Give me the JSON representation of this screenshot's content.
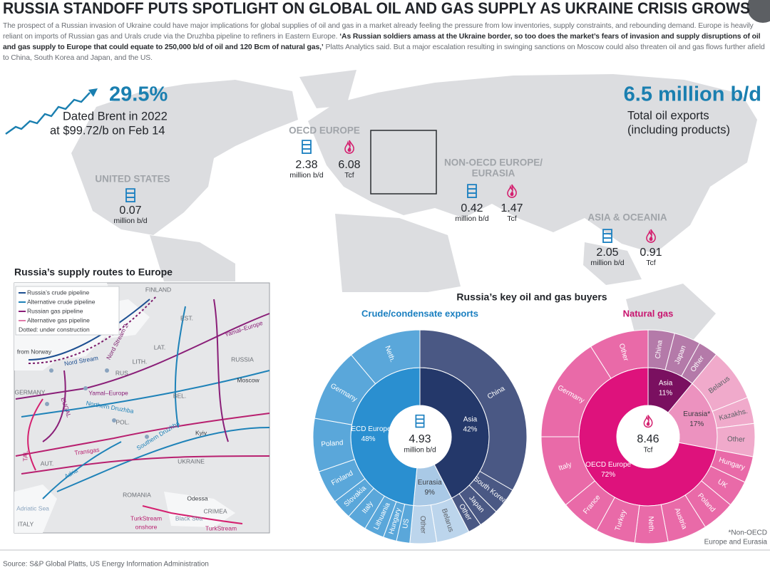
{
  "header": {
    "title": "RUSSIA STANDOFF PUTS SPOTLIGHT ON GLOBAL OIL AND GAS SUPPLY AS UKRAINE CRISIS GROWS",
    "intro": [
      "The prospect of a Russian invasion of Ukraine could have major implications for global supplies of oil and gas in a market already feeling the pressure from low inventories, supply constraints, and rebounding demand.  Europe is heavily reliant on imports of Russian gas and Urals crude via the Druzhba pipeline to refiners in Eastern Europe.  ",
      "‘As Russian soldiers amass at the Ukraine border, so too does the market’s fears of invasion and supply disruptions of oil and gas supply to Europe that could equate to 250,000 b/d of oil and 120 Bcm of natural gas,’",
      " Platts Analytics said. But a major escalation resulting in swinging sanctions on Moscow could also threaten oil and gas flows further afield to China, South Korea and Japan, and the US."
    ]
  },
  "stats": {
    "brent": {
      "value": "29.5%",
      "label": "Dated Brent in 2022",
      "sub": "at $99.72/b on Feb 14"
    },
    "exports": {
      "value": "6.5 million b/d",
      "label": "Total oil exports",
      "sub": "(including products)"
    }
  },
  "regions": [
    {
      "name": [
        "OECD EUROPE"
      ],
      "oil": "2.38",
      "oil_unit": "million b/d",
      "gas": "6.08",
      "gas_unit": "Tcf"
    },
    {
      "name": [
        "UNITED STATES"
      ],
      "oil": "0.07",
      "oil_unit": "million b/d"
    },
    {
      "name": [
        "NON-OECD EUROPE/",
        "EURASIA"
      ],
      "oil": "0.42",
      "oil_unit": "million b/d",
      "gas": "1.47",
      "gas_unit": "Tcf"
    },
    {
      "name": [
        "ASIA & OCEANIA"
      ],
      "oil": "2.05",
      "oil_unit": "million b/d",
      "gas": "0.91",
      "gas_unit": "Tcf"
    }
  ],
  "map_inset": {
    "title": "Russia’s supply routes to Europe",
    "legend": [
      "Russia’s crude pipeline",
      "Alternative crude pipeline",
      "Russian gas pipeline",
      "Alternative gas pipeline",
      "Dotted: under construction"
    ],
    "labels": [
      "FINLAND",
      "EST.",
      "LAT.",
      "LITH.",
      "RUS.",
      "BEL.",
      "POL.",
      "GERMANY",
      "UKRAINE",
      "ROMANIA",
      "RUSSIA",
      "Moscow",
      "Kyiv",
      "Odessa",
      "CRIMEA",
      "AUT.",
      "ITALY",
      "Nord Stream",
      "Nord Stream 2",
      "Yamal–Europe",
      "Yamal–Europe",
      "Northern Druzhba",
      "Southern Druzhba",
      "Transgas",
      "Adria",
      "TurkStream",
      "onshore",
      "TurkStream",
      "Black Sea",
      "Adriatic Sea",
      "from Norway",
      "EUGAL",
      "TAL"
    ]
  },
  "buyers_title": "Russia’s key oil and gas buyers",
  "chart_data": [
    {
      "type": "sunburst",
      "title": "Crude/condensate exports",
      "title_color": "#1a7fc0",
      "center_value": "4.93",
      "center_unit": "million b/d",
      "categories": [
        "Asia",
        "Eurasia",
        "OECD Europe"
      ],
      "values": [
        42,
        9,
        48
      ],
      "value_labels": [
        "42%",
        "9%",
        "48%"
      ],
      "colors": [
        "#24386a",
        "#a9c9e6",
        "#2a8fd0"
      ],
      "outer_colors": [
        "#4a5884",
        "#bcd5ec",
        "#5aa7da"
      ],
      "segments": [
        {
          "categories": [
            "China",
            "South Korea",
            "Japan",
            "Other"
          ],
          "values": [
            33,
            4,
            3,
            2
          ]
        },
        {
          "categories": [
            "Belarus",
            "Other"
          ],
          "values": [
            5,
            4
          ]
        },
        {
          "categories": [
            "US",
            "Hungary",
            "Lithuania",
            "Italy",
            "Slovakia",
            "Finland",
            "Poland",
            "Germany",
            "Neth."
          ],
          "values": [
            2,
            2,
            3,
            3,
            3,
            5,
            8,
            11,
            11
          ]
        }
      ]
    },
    {
      "type": "sunburst",
      "title": "Natural gas",
      "title_color": "#c8156f",
      "center_value": "8.46",
      "center_unit": "Tcf",
      "categories": [
        "Asia",
        "Eurasia*",
        "OECD Europe"
      ],
      "values": [
        11,
        17,
        72
      ],
      "value_labels": [
        "11%",
        "17%",
        "72%"
      ],
      "colors": [
        "#7a1060",
        "#ec92bf",
        "#de127c"
      ],
      "outer_colors": [
        "#b47aa9",
        "#f0aacb",
        "#e96aa8"
      ],
      "segments": [
        {
          "categories": [
            "China",
            "Japan",
            "Other"
          ],
          "values": [
            4,
            4,
            3
          ]
        },
        {
          "categories": [
            "Belarus",
            "Kazakhs.",
            "Other"
          ],
          "values": [
            8,
            4,
            5
          ]
        },
        {
          "categories": [
            "Hungary",
            "UK",
            "Poland",
            "Austria",
            "Neth.",
            "Turkey",
            "France",
            "Italy",
            "Germany",
            "Other"
          ],
          "values": [
            4,
            4,
            5,
            6,
            5,
            6,
            6,
            11,
            16,
            9
          ]
        }
      ]
    }
  ],
  "footnote": [
    "*Non-OECD",
    "Europe and Eurasia"
  ],
  "source": "Source: S&P Global Platts, US Energy Information Administration"
}
